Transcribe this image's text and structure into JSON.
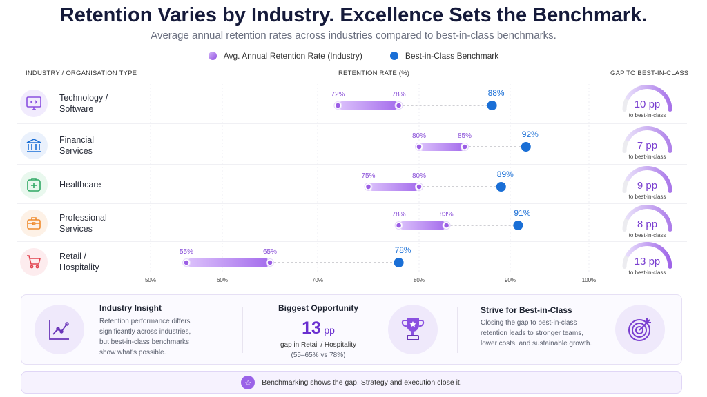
{
  "header": {
    "title": "Retention Varies by Industry. Excellence Sets the Benchmark.",
    "subtitle": "Average annual retention rates across industries compared to best-in-class benchmarks."
  },
  "columns": {
    "industry": "INDUSTRY / ORGANISATION TYPE",
    "rate": "RETENTION RATE (%)",
    "gap": "GAP TO BEST-IN-CLASS"
  },
  "colors": {
    "industry": "#a06ae8",
    "benchmark": "#1a6fd6"
  },
  "chart_data": {
    "type": "dumbbell",
    "title": "Retention Varies by Industry. Excellence Sets the Benchmark.",
    "xlabel": "RETENTION RATE (%)",
    "legend": [
      "Avg. Annual Retention Rate (Industry)",
      "Best-in-Class Benchmark"
    ],
    "legend_position": "top",
    "xlim": [
      50,
      100
    ],
    "xticks": [
      50,
      60,
      70,
      80,
      90,
      100
    ],
    "xtick_labels": [
      "50%",
      "60%",
      "70%",
      "80%",
      "90%",
      "100%"
    ],
    "categories": [
      {
        "name_l1": "Technology /",
        "name_l2": "Software",
        "icon": "code-monitor-icon"
      },
      {
        "name_l1": "Financial",
        "name_l2": "Services",
        "icon": "bank-icon"
      },
      {
        "name_l1": "Healthcare",
        "name_l2": "",
        "icon": "medical-kit-icon"
      },
      {
        "name_l1": "Professional",
        "name_l2": "Services",
        "icon": "briefcase-icon"
      },
      {
        "name_l1": "Retail /",
        "name_l2": "Hospitality",
        "icon": "shopping-cart-icon"
      }
    ],
    "industry_low": [
      72,
      80,
      75,
      78,
      55
    ],
    "industry_high": [
      78,
      85,
      80,
      83,
      65
    ],
    "benchmark": [
      88,
      92,
      89,
      91,
      78
    ],
    "gap_pp": [
      10,
      7,
      9,
      8,
      13
    ],
    "gap_unit": "pp",
    "gap_caption": "to best-in-class"
  },
  "cards": {
    "insight": {
      "title": "Industry Insight",
      "text": [
        "Retention performance differs",
        "significantly across industries,",
        "but best-in-class benchmarks",
        "show what's possible."
      ]
    },
    "opportunity": {
      "title": "Biggest Opportunity",
      "value": "13",
      "unit": "pp",
      "line1": "gap in Retail / Hospitality",
      "line2": "(55–65% vs 78%)"
    },
    "strive": {
      "title": "Strive for Best-in-Class",
      "text": [
        "Closing the gap to best-in-class",
        "retention leads to stronger teams,",
        "lower costs, and sustainable growth."
      ]
    }
  },
  "footer": "Benchmarking shows the gap. Strategy and execution close it."
}
